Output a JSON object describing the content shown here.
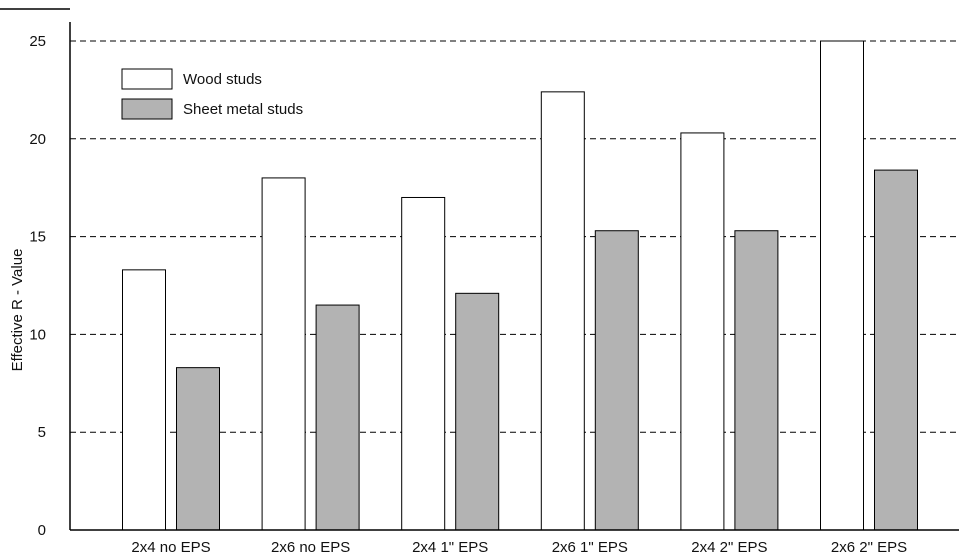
{
  "chart_data": {
    "type": "bar",
    "title": "",
    "xlabel": "",
    "ylabel": "Effective R - Value",
    "categories": [
      "2x4 no EPS",
      "2x6 no EPS",
      "2x4 1\" EPS",
      "2x6 1\" EPS",
      "2x4 2\" EPS",
      "2x6 2\" EPS"
    ],
    "series": [
      {
        "name": "Wood studs",
        "values": [
          13.3,
          18.0,
          17.0,
          22.4,
          20.3,
          25.0
        ],
        "color": "#ffffff"
      },
      {
        "name": "Sheet metal studs",
        "values": [
          8.3,
          11.5,
          12.1,
          15.3,
          15.3,
          18.4
        ],
        "color": "#b3b3b3"
      }
    ],
    "ylim": [
      0,
      26
    ],
    "yticks": [
      0,
      5,
      10,
      15,
      20,
      25
    ],
    "grid": "dashed horizontal",
    "legend_position": "top-left"
  }
}
